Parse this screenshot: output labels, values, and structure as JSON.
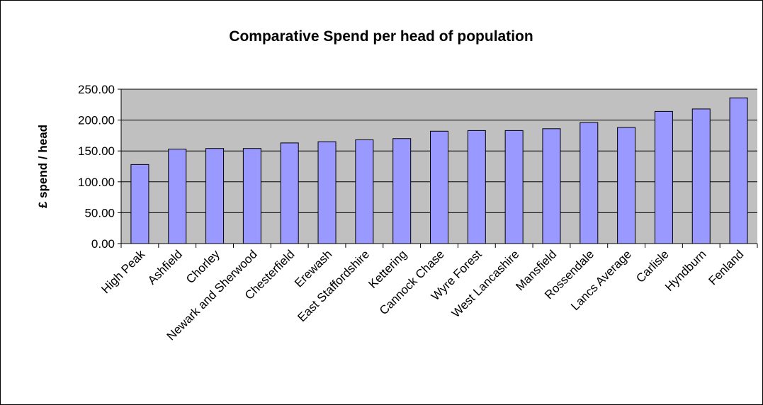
{
  "chart_data": {
    "type": "bar",
    "title": "Comparative Spend per head of population",
    "y_label": "£ spend / head",
    "categories": [
      "High Peak",
      "Ashfield",
      "Chorley",
      "Newark and Sherwood",
      "Chesterfield",
      "Erewash",
      "East Staffordshire",
      "Kettering",
      "Cannock Chase",
      "Wyre Forest",
      "West Lancashire",
      "Mansfield",
      "Rossendale",
      "Lancs Average",
      "Carlisle",
      "Hyndburn",
      "Fenland"
    ],
    "values": [
      128,
      153,
      154,
      154,
      163,
      165,
      168,
      170,
      182,
      183,
      183,
      186,
      196,
      188,
      214,
      218,
      236
    ],
    "color": "#9999ff",
    "ylim": [
      0,
      250
    ],
    "yticks": [
      {
        "value": 0,
        "label": "0.00"
      },
      {
        "value": 50,
        "label": "50.00"
      },
      {
        "value": 100,
        "label": "100.00"
      },
      {
        "value": 150,
        "label": "150.00"
      },
      {
        "value": 200,
        "label": "200.00"
      },
      {
        "value": 250,
        "label": "250.00"
      }
    ],
    "grid": true
  }
}
